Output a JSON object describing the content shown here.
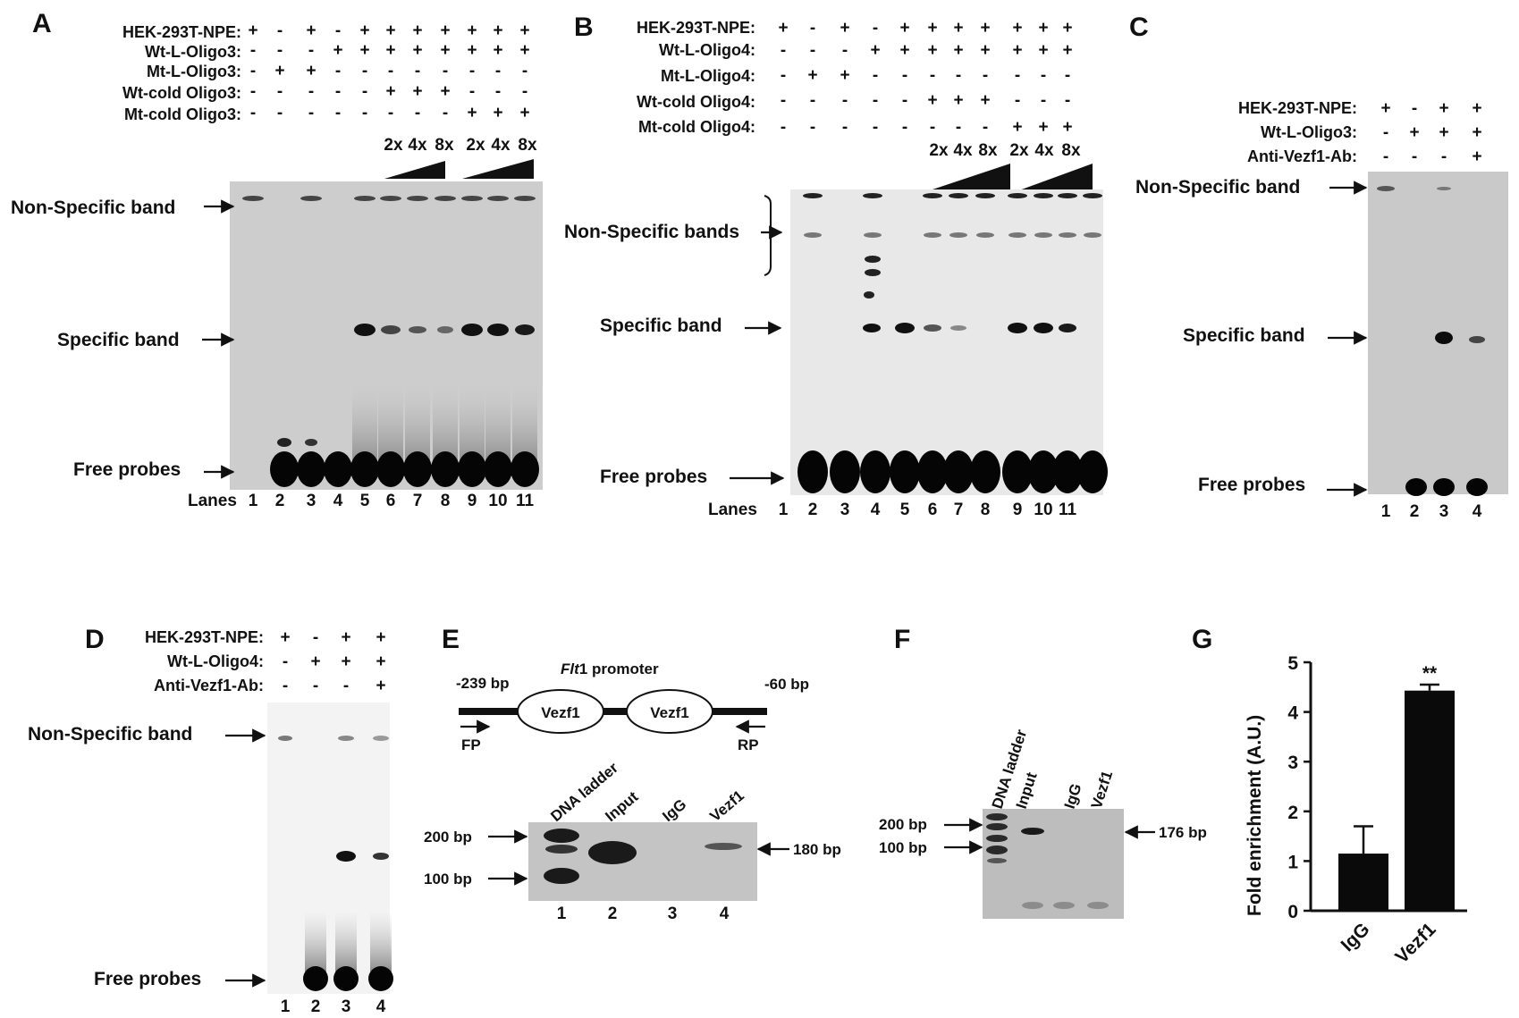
{
  "panels": {
    "A": {
      "label": "A",
      "conditions": [
        {
          "name": "HEK-293T-NPE:",
          "values": [
            "+",
            "-",
            "+",
            "-",
            "+",
            "+",
            "+",
            "+",
            "+",
            "+",
            "+"
          ]
        },
        {
          "name": "Wt-L-Oligo3:",
          "values": [
            "-",
            "-",
            "-",
            "+",
            "+",
            "+",
            "+",
            "+",
            "+",
            "+",
            "+"
          ]
        },
        {
          "name": "Mt-L-Oligo3:",
          "values": [
            "-",
            "+",
            "+",
            "-",
            "-",
            "-",
            "-",
            "-",
            "-",
            "-",
            "-"
          ]
        },
        {
          "name": "Wt-cold Oligo3:",
          "values": [
            "-",
            "-",
            "-",
            "-",
            "-",
            "+",
            "+",
            "+",
            "-",
            "-",
            "-"
          ]
        },
        {
          "name": "Mt-cold Oligo3:",
          "values": [
            "-",
            "-",
            "-",
            "-",
            "-",
            "-",
            "-",
            "-",
            "+",
            "+",
            "+"
          ]
        }
      ],
      "doses": [
        "2x",
        "4x",
        "8x",
        "2x",
        "4x",
        "8x"
      ],
      "bands": {
        "nonspecific": "Non-Specific band",
        "specific": "Specific band",
        "free": "Free probes"
      },
      "lanes_label": "Lanes",
      "lanes": [
        "1",
        "2",
        "3",
        "4",
        "5",
        "6",
        "7",
        "8",
        "9",
        "10",
        "11"
      ]
    },
    "B": {
      "label": "B",
      "conditions": [
        {
          "name": "HEK-293T-NPE:",
          "values": [
            "+",
            "-",
            "+",
            "-",
            "+",
            "+",
            "+",
            "+",
            "+",
            "+",
            "+"
          ]
        },
        {
          "name": "Wt-L-Oligo4:",
          "values": [
            "-",
            "-",
            "-",
            "+",
            "+",
            "+",
            "+",
            "+",
            "+",
            "+",
            "+"
          ]
        },
        {
          "name": "Mt-L-Oligo4:",
          "values": [
            "-",
            "+",
            "+",
            "-",
            "-",
            "-",
            "-",
            "-",
            "-",
            "-",
            "-"
          ]
        },
        {
          "name": "Wt-cold Oligo4:",
          "values": [
            "-",
            "-",
            "-",
            "-",
            "-",
            "+",
            "+",
            "+",
            "-",
            "-",
            "-"
          ]
        },
        {
          "name": "Mt-cold Oligo4:",
          "values": [
            "-",
            "-",
            "-",
            "-",
            "-",
            "-",
            "-",
            "-",
            "+",
            "+",
            "+"
          ]
        }
      ],
      "doses": [
        "2x",
        "4x",
        "8x",
        "2x",
        "4x",
        "8x"
      ],
      "bands": {
        "nonspecific": "Non-Specific bands",
        "specific": "Specific band",
        "free": "Free probes"
      },
      "lanes_label": "Lanes",
      "lanes": [
        "1",
        "2",
        "3",
        "4",
        "5",
        "6",
        "7",
        "8",
        "9",
        "10",
        "11"
      ]
    },
    "C": {
      "label": "C",
      "conditions": [
        {
          "name": "HEK-293T-NPE:",
          "values": [
            "+",
            "-",
            "+",
            "+"
          ]
        },
        {
          "name": "Wt-L-Oligo3:",
          "values": [
            "-",
            "+",
            "+",
            "+"
          ]
        },
        {
          "name": "Anti-Vezf1-Ab:",
          "values": [
            "-",
            "-",
            "-",
            "+"
          ]
        }
      ],
      "bands": {
        "nonspecific": "Non-Specific band",
        "specific": "Specific band",
        "free": "Free probes"
      },
      "lanes": [
        "1",
        "2",
        "3",
        "4"
      ]
    },
    "D": {
      "label": "D",
      "conditions": [
        {
          "name": "HEK-293T-NPE:",
          "values": [
            "+",
            "-",
            "+",
            "+"
          ]
        },
        {
          "name": "Wt-L-Oligo4:",
          "values": [
            "-",
            "+",
            "+",
            "+"
          ]
        },
        {
          "name": "Anti-Vezf1-Ab:",
          "values": [
            "-",
            "-",
            "-",
            "+"
          ]
        }
      ],
      "bands": {
        "nonspecific": "Non-Specific band",
        "free": "Free probes"
      },
      "lanes": [
        "1",
        "2",
        "3",
        "4"
      ]
    },
    "E": {
      "label": "E",
      "promoter_italic": "Flt",
      "promoter_rest": "1 promoter",
      "left_bp": "-239 bp",
      "right_bp": "-60 bp",
      "site_labels": [
        "Vezf1",
        "Vezf1"
      ],
      "primers": [
        "FP",
        "RP"
      ],
      "gel_cols": [
        "DNA ladder",
        "Input",
        "IgG",
        "Vezf1"
      ],
      "markers": [
        "200 bp",
        "100 bp"
      ],
      "product": "180 bp",
      "lanes": [
        "1",
        "2",
        "3",
        "4"
      ]
    },
    "F": {
      "label": "F",
      "gel_cols": [
        "DNA ladder",
        "Input",
        "IgG",
        "Vezf1"
      ],
      "markers": [
        "200 bp",
        "100 bp"
      ],
      "product": "176 bp"
    },
    "G": {
      "label": "G",
      "significance": "**"
    }
  },
  "chart_data": {
    "type": "bar",
    "categories": [
      "IgG",
      "Vezf1"
    ],
    "values": [
      1.15,
      4.43
    ],
    "errors": [
      0.55,
      0.12
    ],
    "ylabel": "Fold enrichment (A.U.)",
    "ylim": [
      0,
      5
    ],
    "yticks": [
      "0",
      "1",
      "2",
      "3",
      "4",
      "5"
    ],
    "annotations": [
      {
        "category": "Vezf1",
        "text": "**"
      }
    ]
  }
}
